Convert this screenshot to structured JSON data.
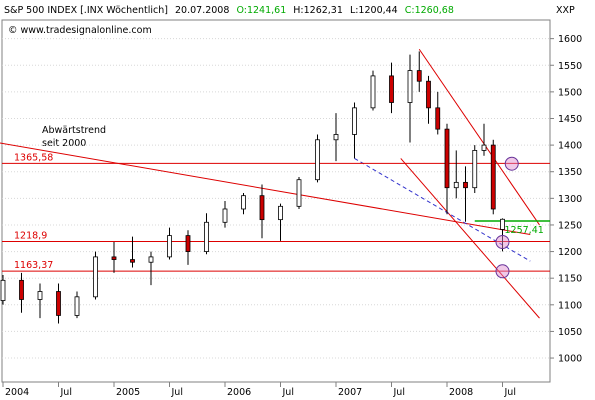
{
  "header": {
    "symbol": "S&P 500 INDEX [.INX  Wöchentlich]",
    "date": "20.07.2008",
    "open_label": "O:1241,61",
    "high_label": "H:1262,31",
    "low_label": "L:1200,44",
    "close_label": "C:1260,68",
    "ticker": "XXP"
  },
  "source": "© www.tradesignalonline.com",
  "annotation": {
    "line1": "Abwärtstrend",
    "line2": "seit 2000"
  },
  "colors": {
    "candle_up": "#ffffff",
    "candle_down": "#cc0000",
    "candle_outline": "#000000",
    "resistance": "#dd0000",
    "channel": "#dd0000",
    "dashed_trend": "#3333cc",
    "green_level": "#00aa00",
    "marker_circle": "#dd88cc"
  },
  "chart_data": {
    "type": "candlestick",
    "title": "S&P 500 INDEX [.INX  Wöchentlich]",
    "ylim": [
      955,
      1635
    ],
    "y_ticks": [
      1000,
      1050,
      1100,
      1150,
      1200,
      1250,
      1300,
      1350,
      1400,
      1450,
      1500,
      1550,
      1600
    ],
    "x_ticks": [
      {
        "label": "2004",
        "date": "2004-01"
      },
      {
        "label": "Jul",
        "date": "2004-07"
      },
      {
        "label": "2005",
        "date": "2005-01"
      },
      {
        "label": "Jul",
        "date": "2005-07"
      },
      {
        "label": "2006",
        "date": "2006-01"
      },
      {
        "label": "Jul",
        "date": "2006-07"
      },
      {
        "label": "2007",
        "date": "2007-01"
      },
      {
        "label": "Jul",
        "date": "2007-07"
      },
      {
        "label": "2008",
        "date": "2008-01"
      },
      {
        "label": "Jul",
        "date": "2008-07"
      }
    ],
    "horizontal_levels": [
      {
        "label": "1365,58",
        "value": 1365.58,
        "color": "#dd0000"
      },
      {
        "label": "1218,9",
        "value": 1218.9,
        "color": "#dd0000"
      },
      {
        "label": "1163,37",
        "value": 1163.37,
        "color": "#dd0000"
      },
      {
        "label": "1257,41",
        "value": 1257.41,
        "color": "#00aa00"
      }
    ],
    "trendlines": [
      {
        "name": "downtrend-since-2000",
        "style": "solid",
        "color": "#dd0000",
        "points": [
          [
            "2003-09",
            1415
          ],
          [
            "2008-10",
            1232
          ]
        ]
      },
      {
        "name": "channel-upper",
        "style": "solid",
        "color": "#dd0000",
        "points": [
          [
            "2007-10",
            1580
          ],
          [
            "2008-11",
            1250
          ]
        ]
      },
      {
        "name": "channel-lower",
        "style": "solid",
        "color": "#dd0000",
        "points": [
          [
            "2007-08",
            1375
          ],
          [
            "2008-11",
            1075
          ]
        ]
      },
      {
        "name": "dashed-support",
        "style": "dashed",
        "color": "#3333cc",
        "points": [
          [
            "2007-03",
            1375
          ],
          [
            "2008-10",
            1182
          ]
        ]
      }
    ],
    "markers": [
      {
        "date": "2008-08",
        "value": 1365
      },
      {
        "date": "2008-07",
        "value": 1218
      },
      {
        "date": "2008-07",
        "value": 1163
      }
    ],
    "series": [
      {
        "date": "2004-01",
        "open": 1108,
        "high": 1156,
        "low": 1100,
        "close": 1146
      },
      {
        "date": "2004-03",
        "open": 1146,
        "high": 1160,
        "low": 1085,
        "close": 1110
      },
      {
        "date": "2004-05",
        "open": 1110,
        "high": 1140,
        "low": 1075,
        "close": 1125
      },
      {
        "date": "2004-07",
        "open": 1125,
        "high": 1140,
        "low": 1065,
        "close": 1080
      },
      {
        "date": "2004-09",
        "open": 1080,
        "high": 1125,
        "low": 1075,
        "close": 1115
      },
      {
        "date": "2004-11",
        "open": 1115,
        "high": 1200,
        "low": 1110,
        "close": 1190
      },
      {
        "date": "2005-01",
        "open": 1190,
        "high": 1218,
        "low": 1160,
        "close": 1185
      },
      {
        "date": "2005-03",
        "open": 1185,
        "high": 1228,
        "low": 1170,
        "close": 1180
      },
      {
        "date": "2005-05",
        "open": 1180,
        "high": 1200,
        "low": 1137,
        "close": 1190
      },
      {
        "date": "2005-07",
        "open": 1190,
        "high": 1245,
        "low": 1185,
        "close": 1230
      },
      {
        "date": "2005-09",
        "open": 1230,
        "high": 1240,
        "low": 1175,
        "close": 1200
      },
      {
        "date": "2005-11",
        "open": 1200,
        "high": 1272,
        "low": 1195,
        "close": 1255
      },
      {
        "date": "2006-01",
        "open": 1255,
        "high": 1295,
        "low": 1245,
        "close": 1280
      },
      {
        "date": "2006-03",
        "open": 1280,
        "high": 1310,
        "low": 1270,
        "close": 1305
      },
      {
        "date": "2006-05",
        "open": 1305,
        "high": 1326,
        "low": 1225,
        "close": 1260
      },
      {
        "date": "2006-07",
        "open": 1260,
        "high": 1290,
        "low": 1220,
        "close": 1285
      },
      {
        "date": "2006-09",
        "open": 1285,
        "high": 1340,
        "low": 1280,
        "close": 1335
      },
      {
        "date": "2006-11",
        "open": 1335,
        "high": 1420,
        "low": 1330,
        "close": 1410
      },
      {
        "date": "2007-01",
        "open": 1410,
        "high": 1460,
        "low": 1370,
        "close": 1420
      },
      {
        "date": "2007-03",
        "open": 1420,
        "high": 1480,
        "low": 1375,
        "close": 1470
      },
      {
        "date": "2007-05",
        "open": 1470,
        "high": 1540,
        "low": 1465,
        "close": 1530
      },
      {
        "date": "2007-07",
        "open": 1530,
        "high": 1555,
        "low": 1460,
        "close": 1480
      },
      {
        "date": "2007-09",
        "open": 1480,
        "high": 1570,
        "low": 1405,
        "close": 1540
      },
      {
        "date": "2007-10",
        "open": 1540,
        "high": 1576,
        "low": 1500,
        "close": 1520
      },
      {
        "date": "2007-11",
        "open": 1520,
        "high": 1530,
        "low": 1440,
        "close": 1470
      },
      {
        "date": "2007-12",
        "open": 1470,
        "high": 1500,
        "low": 1420,
        "close": 1430
      },
      {
        "date": "2008-01",
        "open": 1430,
        "high": 1440,
        "low": 1270,
        "close": 1320
      },
      {
        "date": "2008-02",
        "open": 1320,
        "high": 1390,
        "low": 1300,
        "close": 1330
      },
      {
        "date": "2008-03",
        "open": 1330,
        "high": 1360,
        "low": 1256,
        "close": 1320
      },
      {
        "date": "2008-04",
        "open": 1320,
        "high": 1400,
        "low": 1310,
        "close": 1390
      },
      {
        "date": "2008-05",
        "open": 1390,
        "high": 1440,
        "low": 1380,
        "close": 1400
      },
      {
        "date": "2008-06",
        "open": 1400,
        "high": 1410,
        "low": 1270,
        "close": 1280
      },
      {
        "date": "2008-07",
        "open": 1241.61,
        "high": 1262.31,
        "low": 1200.44,
        "close": 1260.68
      }
    ]
  }
}
